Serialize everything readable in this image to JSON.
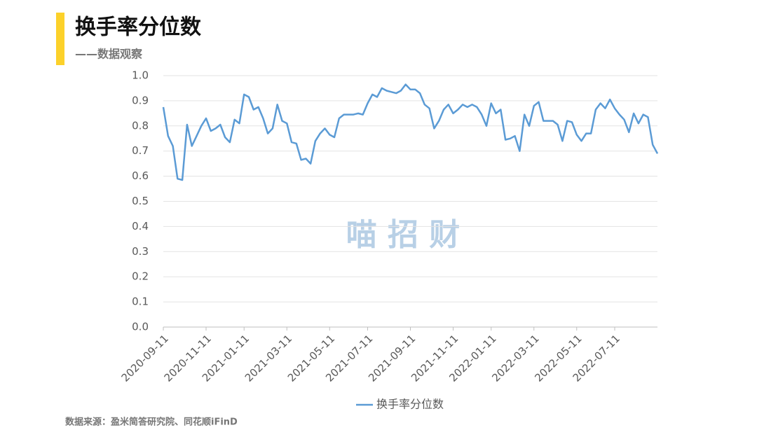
{
  "chart_data": {
    "type": "line",
    "title": "换手率分位数",
    "subtitle": "——数据观察",
    "watermark": "喵 招 财",
    "source": "数据来源：盈米简答研究院、同花顺iFinD",
    "categories": [
      "2020-09-11",
      null,
      null,
      null,
      null,
      null,
      null,
      null,
      null,
      "2020-11-11",
      null,
      null,
      null,
      null,
      null,
      null,
      null,
      "2021-01-11",
      null,
      null,
      null,
      null,
      null,
      null,
      null,
      null,
      "2021-03-11",
      null,
      null,
      null,
      null,
      null,
      null,
      null,
      null,
      "2021-05-11",
      null,
      null,
      null,
      null,
      null,
      null,
      null,
      "2021-07-11",
      null,
      null,
      null,
      null,
      null,
      null,
      null,
      null,
      "2021-09-11",
      null,
      null,
      null,
      null,
      null,
      null,
      null,
      null,
      "2021-11-11",
      null,
      null,
      null,
      null,
      null,
      null,
      null,
      "2022-01-11",
      null,
      null,
      null,
      null,
      null,
      null,
      null,
      null,
      "2022-03-11",
      null,
      null,
      null,
      null,
      null,
      null,
      null,
      null,
      "2022-05-11",
      null,
      null,
      null,
      null,
      null,
      null,
      null,
      "2022-07-11",
      null,
      null,
      null,
      null,
      null,
      null,
      null,
      null,
      null
    ],
    "series": [
      {
        "name": "换手率分位数",
        "color": "#5b9bd5",
        "values": [
          0.875,
          0.76,
          0.72,
          0.59,
          0.585,
          0.805,
          0.72,
          0.76,
          0.8,
          0.83,
          0.78,
          0.79,
          0.805,
          0.755,
          0.735,
          0.825,
          0.81,
          0.925,
          0.915,
          0.865,
          0.875,
          0.83,
          0.77,
          0.79,
          0.885,
          0.82,
          0.81,
          0.735,
          0.73,
          0.665,
          0.67,
          0.65,
          0.74,
          0.77,
          0.79,
          0.765,
          0.755,
          0.83,
          0.845,
          0.845,
          0.845,
          0.85,
          0.845,
          0.89,
          0.925,
          0.915,
          0.95,
          0.94,
          0.935,
          0.93,
          0.94,
          0.965,
          0.945,
          0.945,
          0.93,
          0.885,
          0.87,
          0.79,
          0.82,
          0.865,
          0.885,
          0.85,
          0.865,
          0.885,
          0.875,
          0.885,
          0.875,
          0.845,
          0.8,
          0.89,
          0.85,
          0.865,
          0.745,
          0.75,
          0.76,
          0.7,
          0.845,
          0.8,
          0.88,
          0.895,
          0.82,
          0.82,
          0.82,
          0.805,
          0.74,
          0.82,
          0.815,
          0.765,
          0.74,
          0.77,
          0.77,
          0.865,
          0.89,
          0.87,
          0.905,
          0.87,
          0.845,
          0.825,
          0.775,
          0.85,
          0.81,
          0.845,
          0.835,
          0.725,
          0.69
        ]
      }
    ],
    "ylim": [
      0,
      1
    ],
    "yticks": [
      {
        "value": 0,
        "label": "0.0"
      },
      0.1,
      0.2,
      0.3,
      0.4,
      0.5,
      0.6,
      0.7,
      0.8,
      0.9,
      {
        "value": 1,
        "label": "1.0"
      }
    ],
    "grid": true,
    "legend": "bottom"
  }
}
